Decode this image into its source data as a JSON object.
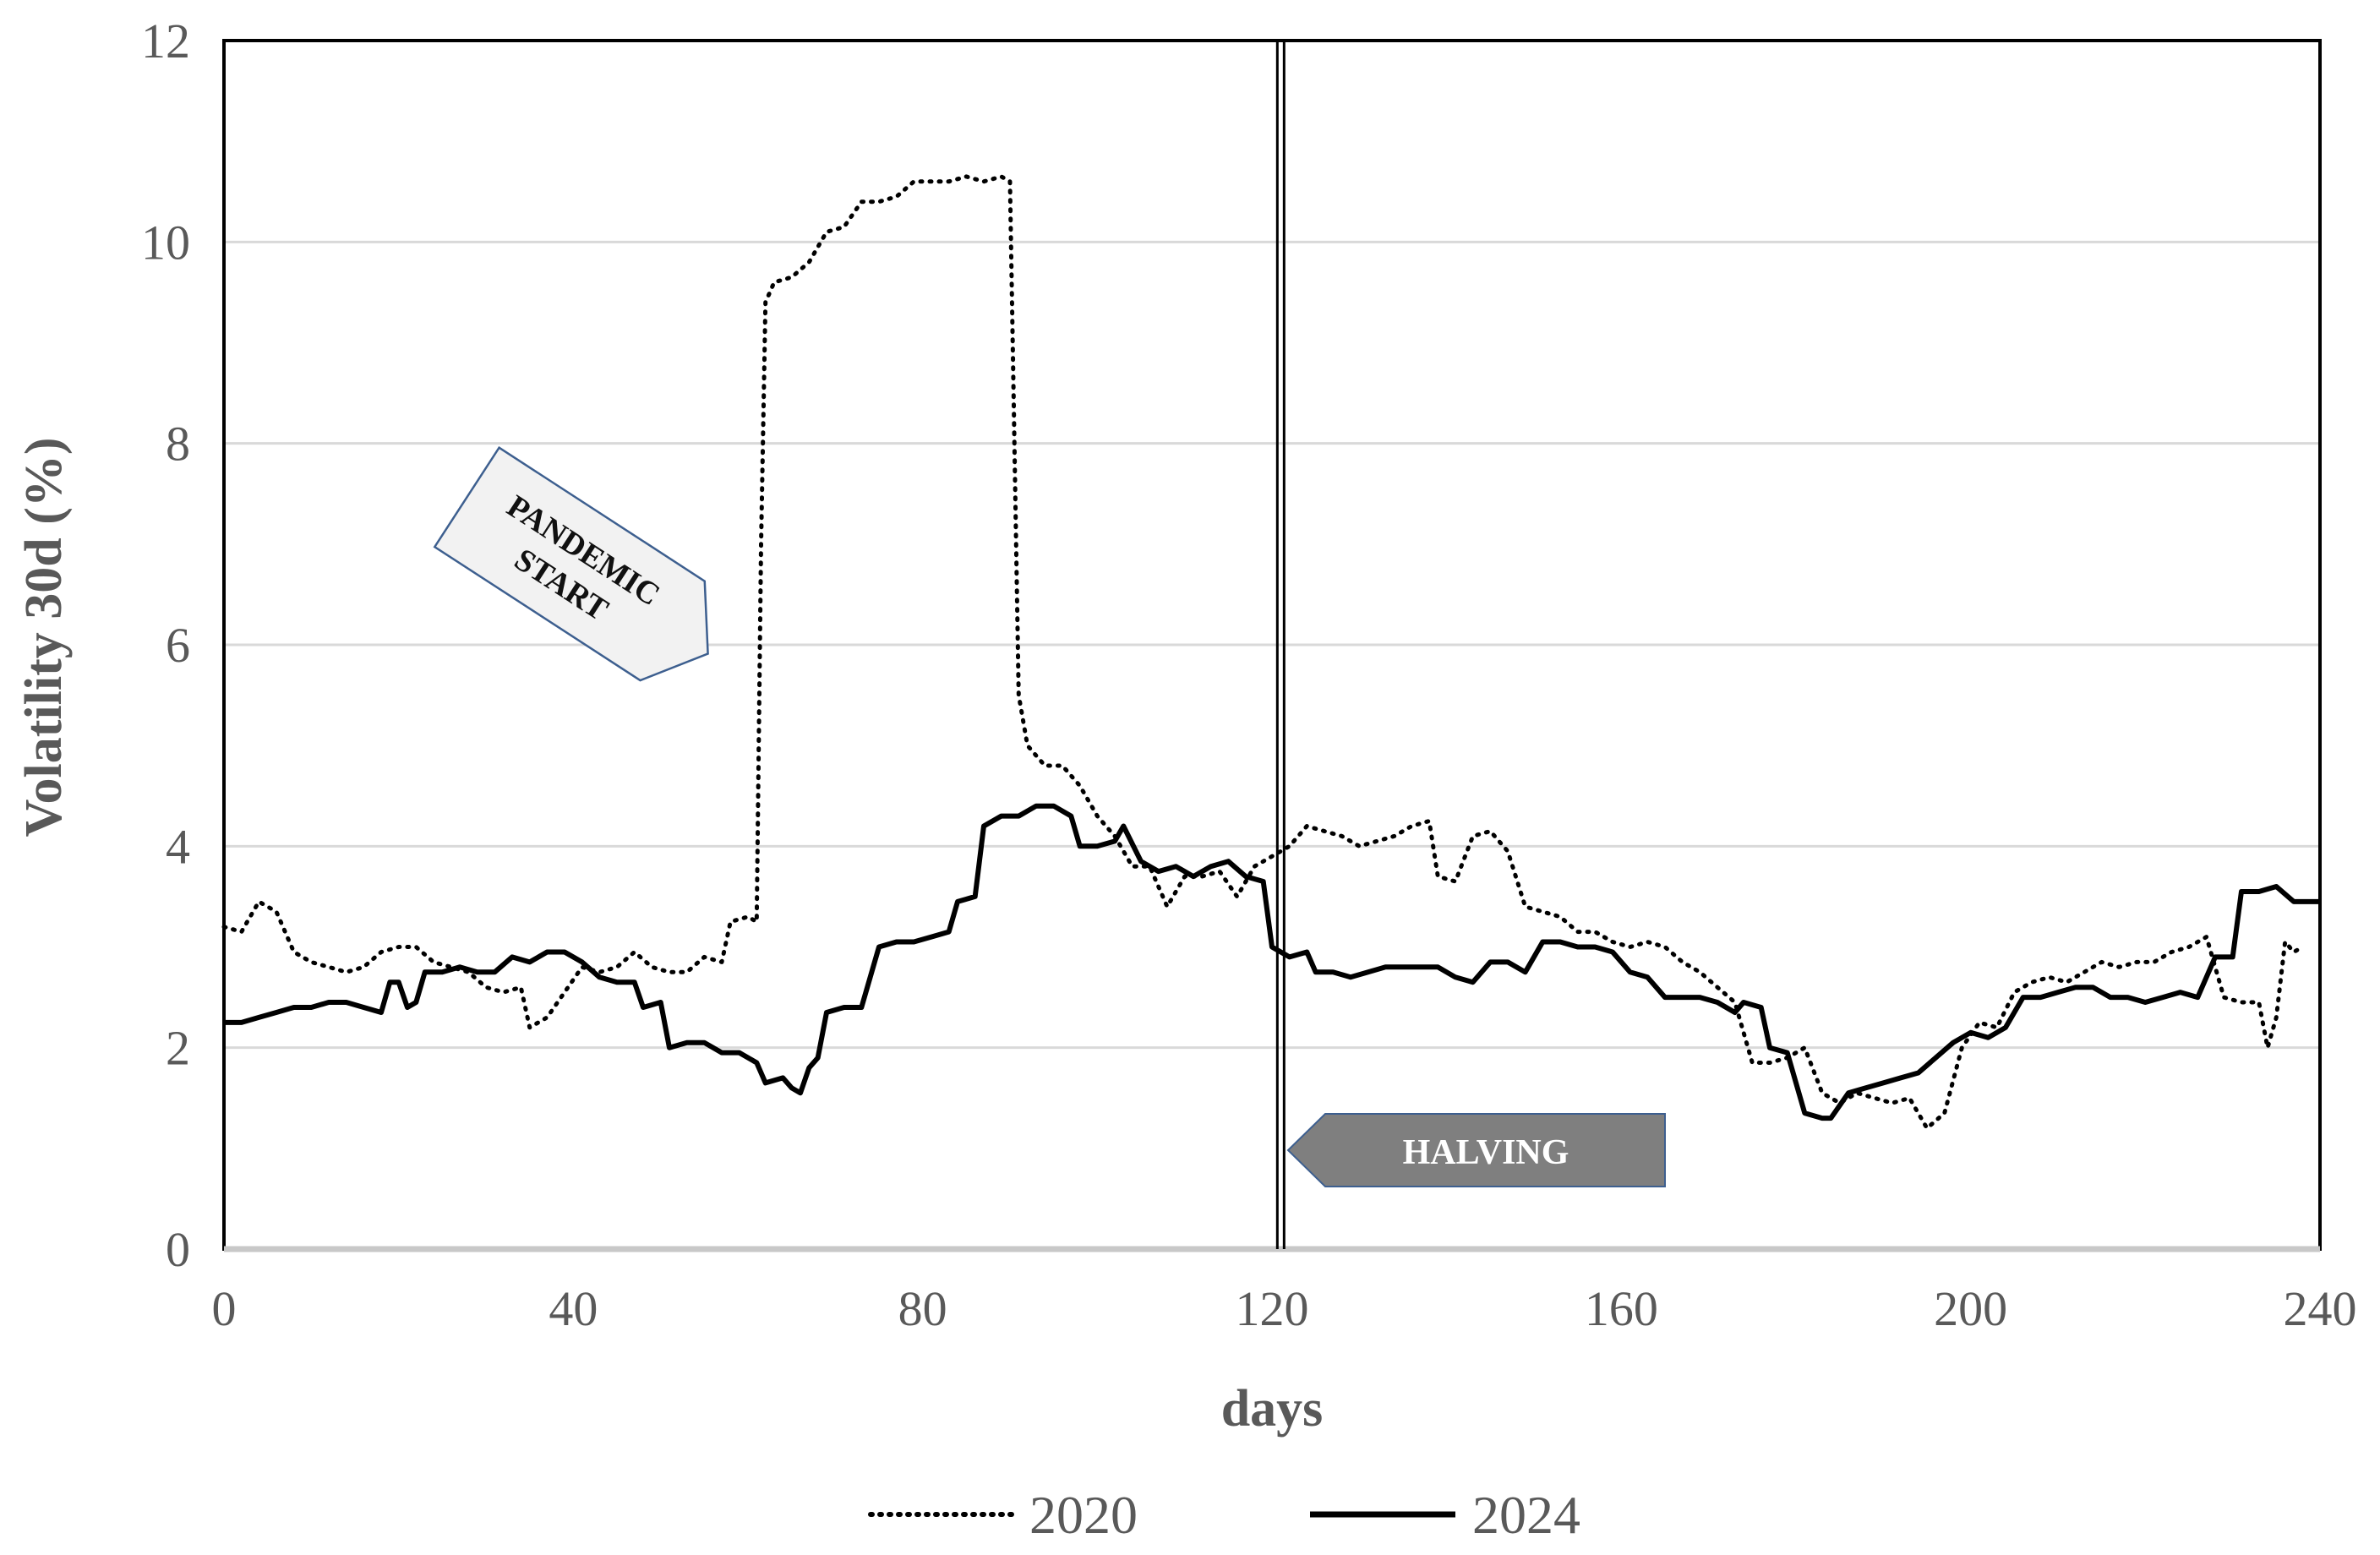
{
  "chart_data": {
    "type": "line",
    "title": "",
    "xlabel": "days",
    "ylabel": "Volatility 30d (%)",
    "xlim": [
      0,
      240
    ],
    "ylim": [
      0,
      12
    ],
    "x_ticks": [
      0,
      40,
      80,
      120,
      160,
      200,
      240
    ],
    "y_ticks": [
      0,
      2,
      4,
      6,
      8,
      10,
      12
    ],
    "grid": "horizontal",
    "legend_position": "bottom",
    "series": [
      {
        "name": "2020",
        "style": "dotted",
        "color": "#000000",
        "points": [
          [
            0,
            3.2
          ],
          [
            2,
            3.15
          ],
          [
            4,
            3.45
          ],
          [
            6,
            3.35
          ],
          [
            8,
            2.95
          ],
          [
            10,
            2.85
          ],
          [
            12,
            2.8
          ],
          [
            14,
            2.75
          ],
          [
            16,
            2.8
          ],
          [
            18,
            2.95
          ],
          [
            20,
            3.0
          ],
          [
            22,
            3.0
          ],
          [
            24,
            2.85
          ],
          [
            26,
            2.8
          ],
          [
            28,
            2.75
          ],
          [
            30,
            2.6
          ],
          [
            32,
            2.55
          ],
          [
            34,
            2.6
          ],
          [
            35,
            2.2
          ],
          [
            37,
            2.3
          ],
          [
            39,
            2.55
          ],
          [
            41,
            2.8
          ],
          [
            43,
            2.75
          ],
          [
            45,
            2.8
          ],
          [
            47,
            2.95
          ],
          [
            49,
            2.8
          ],
          [
            51,
            2.75
          ],
          [
            53,
            2.75
          ],
          [
            55,
            2.9
          ],
          [
            57,
            2.85
          ],
          [
            58,
            3.25
          ],
          [
            60,
            3.3
          ],
          [
            61,
            3.25
          ],
          [
            61.5,
            7.0
          ],
          [
            62,
            9.4
          ],
          [
            63,
            9.6
          ],
          [
            65,
            9.65
          ],
          [
            67,
            9.8
          ],
          [
            69,
            10.1
          ],
          [
            71,
            10.15
          ],
          [
            73,
            10.4
          ],
          [
            75,
            10.4
          ],
          [
            77,
            10.45
          ],
          [
            79,
            10.6
          ],
          [
            81,
            10.6
          ],
          [
            83,
            10.6
          ],
          [
            85,
            10.65
          ],
          [
            87,
            10.6
          ],
          [
            89,
            10.65
          ],
          [
            90,
            10.6
          ],
          [
            91,
            5.5
          ],
          [
            92,
            5.0
          ],
          [
            94,
            4.8
          ],
          [
            96,
            4.8
          ],
          [
            98,
            4.6
          ],
          [
            100,
            4.3
          ],
          [
            102,
            4.1
          ],
          [
            104,
            3.8
          ],
          [
            106,
            3.8
          ],
          [
            108,
            3.4
          ],
          [
            110,
            3.7
          ],
          [
            112,
            3.7
          ],
          [
            114,
            3.75
          ],
          [
            116,
            3.5
          ],
          [
            118,
            3.8
          ],
          [
            120,
            3.9
          ],
          [
            122,
            4.0
          ],
          [
            124,
            4.2
          ],
          [
            126,
            4.15
          ],
          [
            128,
            4.1
          ],
          [
            130,
            4.0
          ],
          [
            132,
            4.05
          ],
          [
            134,
            4.1
          ],
          [
            136,
            4.2
          ],
          [
            138,
            4.25
          ],
          [
            139,
            3.7
          ],
          [
            141,
            3.65
          ],
          [
            143,
            4.1
          ],
          [
            145,
            4.15
          ],
          [
            147,
            3.95
          ],
          [
            149,
            3.4
          ],
          [
            151,
            3.35
          ],
          [
            153,
            3.3
          ],
          [
            155,
            3.15
          ],
          [
            157,
            3.15
          ],
          [
            159,
            3.05
          ],
          [
            161,
            3.0
          ],
          [
            163,
            3.05
          ],
          [
            165,
            3.0
          ],
          [
            167,
            2.85
          ],
          [
            169,
            2.75
          ],
          [
            171,
            2.6
          ],
          [
            173,
            2.45
          ],
          [
            175,
            1.85
          ],
          [
            177,
            1.85
          ],
          [
            179,
            1.9
          ],
          [
            181,
            2.0
          ],
          [
            183,
            1.55
          ],
          [
            185,
            1.45
          ],
          [
            187,
            1.55
          ],
          [
            189,
            1.5
          ],
          [
            191,
            1.45
          ],
          [
            193,
            1.5
          ],
          [
            195,
            1.2
          ],
          [
            197,
            1.35
          ],
          [
            199,
            2.0
          ],
          [
            201,
            2.25
          ],
          [
            203,
            2.2
          ],
          [
            205,
            2.55
          ],
          [
            207,
            2.65
          ],
          [
            209,
            2.7
          ],
          [
            211,
            2.65
          ],
          [
            213,
            2.75
          ],
          [
            215,
            2.85
          ],
          [
            217,
            2.8
          ],
          [
            219,
            2.85
          ],
          [
            221,
            2.85
          ],
          [
            223,
            2.95
          ],
          [
            225,
            3.0
          ],
          [
            227,
            3.1
          ],
          [
            229,
            2.5
          ],
          [
            231,
            2.45
          ],
          [
            233,
            2.45
          ],
          [
            234,
            2.0
          ],
          [
            235,
            2.3
          ],
          [
            236,
            3.05
          ],
          [
            237,
            2.95
          ],
          [
            238,
            3.0
          ]
        ]
      },
      {
        "name": "2024",
        "style": "solid",
        "color": "#000000",
        "points": [
          [
            0,
            2.25
          ],
          [
            2,
            2.25
          ],
          [
            4,
            2.3
          ],
          [
            6,
            2.35
          ],
          [
            8,
            2.4
          ],
          [
            10,
            2.4
          ],
          [
            12,
            2.45
          ],
          [
            14,
            2.45
          ],
          [
            16,
            2.4
          ],
          [
            18,
            2.35
          ],
          [
            19,
            2.65
          ],
          [
            20,
            2.65
          ],
          [
            21,
            2.4
          ],
          [
            22,
            2.45
          ],
          [
            23,
            2.75
          ],
          [
            25,
            2.75
          ],
          [
            27,
            2.8
          ],
          [
            29,
            2.75
          ],
          [
            31,
            2.75
          ],
          [
            33,
            2.9
          ],
          [
            35,
            2.85
          ],
          [
            37,
            2.95
          ],
          [
            39,
            2.95
          ],
          [
            41,
            2.85
          ],
          [
            43,
            2.7
          ],
          [
            45,
            2.65
          ],
          [
            47,
            2.65
          ],
          [
            48,
            2.4
          ],
          [
            50,
            2.45
          ],
          [
            51,
            2.0
          ],
          [
            53,
            2.05
          ],
          [
            55,
            2.05
          ],
          [
            57,
            1.95
          ],
          [
            59,
            1.95
          ],
          [
            61,
            1.85
          ],
          [
            62,
            1.65
          ],
          [
            64,
            1.7
          ],
          [
            65,
            1.6
          ],
          [
            66,
            1.55
          ],
          [
            67,
            1.8
          ],
          [
            68,
            1.9
          ],
          [
            69,
            2.35
          ],
          [
            71,
            2.4
          ],
          [
            73,
            2.4
          ],
          [
            75,
            3.0
          ],
          [
            77,
            3.05
          ],
          [
            79,
            3.05
          ],
          [
            81,
            3.1
          ],
          [
            83,
            3.15
          ],
          [
            84,
            3.45
          ],
          [
            86,
            3.5
          ],
          [
            87,
            4.2
          ],
          [
            89,
            4.3
          ],
          [
            91,
            4.3
          ],
          [
            93,
            4.4
          ],
          [
            95,
            4.4
          ],
          [
            97,
            4.3
          ],
          [
            98,
            4.0
          ],
          [
            100,
            4.0
          ],
          [
            102,
            4.05
          ],
          [
            103,
            4.2
          ],
          [
            105,
            3.85
          ],
          [
            107,
            3.75
          ],
          [
            109,
            3.8
          ],
          [
            111,
            3.7
          ],
          [
            113,
            3.8
          ],
          [
            115,
            3.85
          ],
          [
            117,
            3.7
          ],
          [
            119,
            3.65
          ],
          [
            120,
            3.0
          ],
          [
            122,
            2.9
          ],
          [
            124,
            2.95
          ],
          [
            125,
            2.75
          ],
          [
            127,
            2.75
          ],
          [
            129,
            2.7
          ],
          [
            131,
            2.75
          ],
          [
            133,
            2.8
          ],
          [
            135,
            2.8
          ],
          [
            137,
            2.8
          ],
          [
            139,
            2.8
          ],
          [
            141,
            2.7
          ],
          [
            143,
            2.65
          ],
          [
            145,
            2.85
          ],
          [
            147,
            2.85
          ],
          [
            149,
            2.75
          ],
          [
            151,
            3.05
          ],
          [
            153,
            3.05
          ],
          [
            155,
            3.0
          ],
          [
            157,
            3.0
          ],
          [
            159,
            2.95
          ],
          [
            161,
            2.75
          ],
          [
            163,
            2.7
          ],
          [
            165,
            2.5
          ],
          [
            167,
            2.5
          ],
          [
            169,
            2.5
          ],
          [
            171,
            2.45
          ],
          [
            173,
            2.35
          ],
          [
            174,
            2.45
          ],
          [
            176,
            2.4
          ],
          [
            177,
            2.0
          ],
          [
            179,
            1.95
          ],
          [
            181,
            1.35
          ],
          [
            183,
            1.3
          ],
          [
            184,
            1.3
          ],
          [
            186,
            1.55
          ],
          [
            188,
            1.6
          ],
          [
            190,
            1.65
          ],
          [
            192,
            1.7
          ],
          [
            194,
            1.75
          ],
          [
            196,
            1.9
          ],
          [
            198,
            2.05
          ],
          [
            200,
            2.15
          ],
          [
            202,
            2.1
          ],
          [
            204,
            2.2
          ],
          [
            206,
            2.5
          ],
          [
            208,
            2.5
          ],
          [
            210,
            2.55
          ],
          [
            212,
            2.6
          ],
          [
            214,
            2.6
          ],
          [
            216,
            2.5
          ],
          [
            218,
            2.5
          ],
          [
            220,
            2.45
          ],
          [
            222,
            2.5
          ],
          [
            224,
            2.55
          ],
          [
            226,
            2.5
          ],
          [
            228,
            2.9
          ],
          [
            230,
            2.9
          ],
          [
            231,
            3.55
          ],
          [
            233,
            3.55
          ],
          [
            235,
            3.6
          ],
          [
            237,
            3.45
          ],
          [
            240,
            3.45
          ]
        ]
      }
    ],
    "annotations": {
      "vertical_line_x": 121,
      "pandemic_label_lines": [
        "PANDEMIC",
        "START"
      ],
      "halving_label": "HALVING"
    }
  }
}
